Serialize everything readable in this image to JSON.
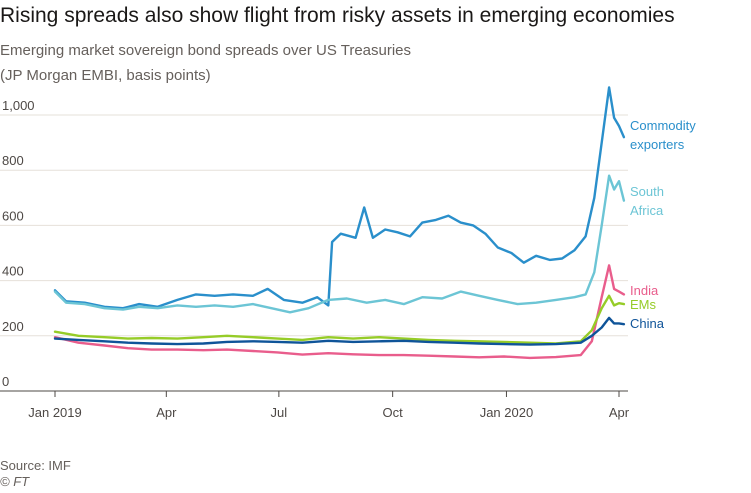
{
  "title": "Rising spreads also show flight from risky assets in emerging economies",
  "subtitle_line1": "Emerging market sovereign bond spreads over US Treasuries",
  "subtitle_line2": "(JP Morgan EMBI, basis points)",
  "source": "Source: IMF",
  "credit": "© FT",
  "chart_data": {
    "type": "line",
    "x_ticks": [
      "Jan 2019",
      "Apr",
      "Jul",
      "Oct",
      "Jan 2020",
      "Apr"
    ],
    "y_ticks": [
      "0",
      "200",
      "400",
      "600",
      "800",
      "1,000"
    ],
    "ylim": [
      0,
      1100
    ],
    "grid": true,
    "legend": "direct labels at line ends",
    "series": [
      {
        "name": "Commodity exporters",
        "label_lines": [
          "Commodity",
          "exporters"
        ],
        "color": "#2a8fcb",
        "points": [
          [
            "2019-01-01",
            365
          ],
          [
            "2019-01-10",
            325
          ],
          [
            "2019-01-25",
            320
          ],
          [
            "2019-02-10",
            305
          ],
          [
            "2019-02-25",
            300
          ],
          [
            "2019-03-10",
            315
          ],
          [
            "2019-03-25",
            305
          ],
          [
            "2019-04-10",
            330
          ],
          [
            "2019-04-25",
            350
          ],
          [
            "2019-05-10",
            345
          ],
          [
            "2019-05-25",
            350
          ],
          [
            "2019-06-10",
            345
          ],
          [
            "2019-06-22",
            370
          ],
          [
            "2019-07-05",
            330
          ],
          [
            "2019-07-20",
            320
          ],
          [
            "2019-08-01",
            340
          ],
          [
            "2019-08-10",
            310
          ],
          [
            "2019-08-13",
            540
          ],
          [
            "2019-08-20",
            570
          ],
          [
            "2019-09-01",
            555
          ],
          [
            "2019-09-08",
            665
          ],
          [
            "2019-09-15",
            555
          ],
          [
            "2019-09-25",
            585
          ],
          [
            "2019-10-05",
            575
          ],
          [
            "2019-10-15",
            560
          ],
          [
            "2019-10-25",
            610
          ],
          [
            "2019-11-05",
            620
          ],
          [
            "2019-11-15",
            635
          ],
          [
            "2019-11-25",
            610
          ],
          [
            "2019-12-05",
            600
          ],
          [
            "2019-12-15",
            570
          ],
          [
            "2019-12-25",
            520
          ],
          [
            "2020-01-05",
            500
          ],
          [
            "2020-01-15",
            465
          ],
          [
            "2020-01-25",
            490
          ],
          [
            "2020-02-05",
            475
          ],
          [
            "2020-02-15",
            480
          ],
          [
            "2020-02-25",
            510
          ],
          [
            "2020-03-05",
            560
          ],
          [
            "2020-03-12",
            700
          ],
          [
            "2020-03-18",
            900
          ],
          [
            "2020-03-24",
            1100
          ],
          [
            "2020-03-28",
            990
          ],
          [
            "2020-04-01",
            960
          ],
          [
            "2020-04-05",
            920
          ]
        ]
      },
      {
        "name": "South Africa",
        "label_lines": [
          "South",
          "Africa"
        ],
        "color": "#6cc5d5",
        "points": [
          [
            "2019-01-01",
            360
          ],
          [
            "2019-01-10",
            320
          ],
          [
            "2019-01-25",
            315
          ],
          [
            "2019-02-10",
            300
          ],
          [
            "2019-02-25",
            295
          ],
          [
            "2019-03-10",
            305
          ],
          [
            "2019-03-25",
            300
          ],
          [
            "2019-04-10",
            310
          ],
          [
            "2019-04-25",
            305
          ],
          [
            "2019-05-10",
            310
          ],
          [
            "2019-05-25",
            305
          ],
          [
            "2019-06-10",
            315
          ],
          [
            "2019-06-25",
            300
          ],
          [
            "2019-07-10",
            285
          ],
          [
            "2019-07-25",
            300
          ],
          [
            "2019-08-10",
            330
          ],
          [
            "2019-08-25",
            335
          ],
          [
            "2019-09-10",
            320
          ],
          [
            "2019-09-25",
            330
          ],
          [
            "2019-10-10",
            315
          ],
          [
            "2019-10-25",
            340
          ],
          [
            "2019-11-10",
            335
          ],
          [
            "2019-11-25",
            360
          ],
          [
            "2019-12-10",
            345
          ],
          [
            "2019-12-25",
            330
          ],
          [
            "2020-01-10",
            315
          ],
          [
            "2020-01-25",
            320
          ],
          [
            "2020-02-10",
            330
          ],
          [
            "2020-02-25",
            340
          ],
          [
            "2020-03-05",
            350
          ],
          [
            "2020-03-12",
            430
          ],
          [
            "2020-03-18",
            600
          ],
          [
            "2020-03-24",
            780
          ],
          [
            "2020-03-28",
            730
          ],
          [
            "2020-04-01",
            760
          ],
          [
            "2020-04-05",
            690
          ]
        ]
      },
      {
        "name": "India",
        "label_lines": [
          "India"
        ],
        "color": "#e95d8c",
        "points": [
          [
            "2019-01-01",
            195
          ],
          [
            "2019-01-20",
            175
          ],
          [
            "2019-02-10",
            165
          ],
          [
            "2019-03-01",
            155
          ],
          [
            "2019-03-20",
            150
          ],
          [
            "2019-04-10",
            150
          ],
          [
            "2019-05-01",
            148
          ],
          [
            "2019-05-20",
            150
          ],
          [
            "2019-06-10",
            145
          ],
          [
            "2019-06-30",
            140
          ],
          [
            "2019-07-20",
            132
          ],
          [
            "2019-08-10",
            137
          ],
          [
            "2019-08-30",
            133
          ],
          [
            "2019-09-20",
            130
          ],
          [
            "2019-10-10",
            130
          ],
          [
            "2019-10-30",
            128
          ],
          [
            "2019-11-20",
            125
          ],
          [
            "2019-12-10",
            122
          ],
          [
            "2019-12-30",
            125
          ],
          [
            "2020-01-20",
            120
          ],
          [
            "2020-02-10",
            123
          ],
          [
            "2020-03-01",
            130
          ],
          [
            "2020-03-10",
            180
          ],
          [
            "2020-03-18",
            340
          ],
          [
            "2020-03-24",
            455
          ],
          [
            "2020-03-28",
            370
          ],
          [
            "2020-04-01",
            360
          ],
          [
            "2020-04-05",
            350
          ]
        ]
      },
      {
        "name": "EMs",
        "label_lines": [
          "EMs"
        ],
        "color": "#96cc28",
        "points": [
          [
            "2019-01-01",
            215
          ],
          [
            "2019-01-20",
            200
          ],
          [
            "2019-02-10",
            195
          ],
          [
            "2019-03-01",
            190
          ],
          [
            "2019-03-20",
            192
          ],
          [
            "2019-04-10",
            190
          ],
          [
            "2019-05-01",
            195
          ],
          [
            "2019-05-20",
            200
          ],
          [
            "2019-06-10",
            195
          ],
          [
            "2019-06-30",
            190
          ],
          [
            "2019-07-20",
            185
          ],
          [
            "2019-08-10",
            195
          ],
          [
            "2019-08-30",
            190
          ],
          [
            "2019-09-20",
            195
          ],
          [
            "2019-10-10",
            190
          ],
          [
            "2019-10-30",
            185
          ],
          [
            "2019-11-20",
            182
          ],
          [
            "2019-12-10",
            180
          ],
          [
            "2019-12-30",
            178
          ],
          [
            "2020-01-20",
            175
          ],
          [
            "2020-02-10",
            172
          ],
          [
            "2020-03-01",
            180
          ],
          [
            "2020-03-10",
            220
          ],
          [
            "2020-03-18",
            300
          ],
          [
            "2020-03-24",
            345
          ],
          [
            "2020-03-28",
            310
          ],
          [
            "2020-04-01",
            318
          ],
          [
            "2020-04-05",
            315
          ]
        ]
      },
      {
        "name": "China",
        "label_lines": [
          "China"
        ],
        "color": "#0f5499",
        "points": [
          [
            "2019-01-01",
            190
          ],
          [
            "2019-01-20",
            185
          ],
          [
            "2019-02-10",
            180
          ],
          [
            "2019-03-01",
            175
          ],
          [
            "2019-03-20",
            172
          ],
          [
            "2019-04-10",
            170
          ],
          [
            "2019-05-01",
            172
          ],
          [
            "2019-05-20",
            178
          ],
          [
            "2019-06-10",
            180
          ],
          [
            "2019-06-30",
            178
          ],
          [
            "2019-07-20",
            175
          ],
          [
            "2019-08-10",
            182
          ],
          [
            "2019-08-30",
            178
          ],
          [
            "2019-09-20",
            180
          ],
          [
            "2019-10-10",
            182
          ],
          [
            "2019-10-30",
            178
          ],
          [
            "2019-11-20",
            175
          ],
          [
            "2019-12-10",
            172
          ],
          [
            "2019-12-30",
            170
          ],
          [
            "2020-01-20",
            168
          ],
          [
            "2020-02-10",
            170
          ],
          [
            "2020-03-01",
            175
          ],
          [
            "2020-03-10",
            200
          ],
          [
            "2020-03-18",
            230
          ],
          [
            "2020-03-24",
            265
          ],
          [
            "2020-03-28",
            245
          ],
          [
            "2020-04-01",
            245
          ],
          [
            "2020-04-05",
            242
          ]
        ]
      }
    ]
  }
}
